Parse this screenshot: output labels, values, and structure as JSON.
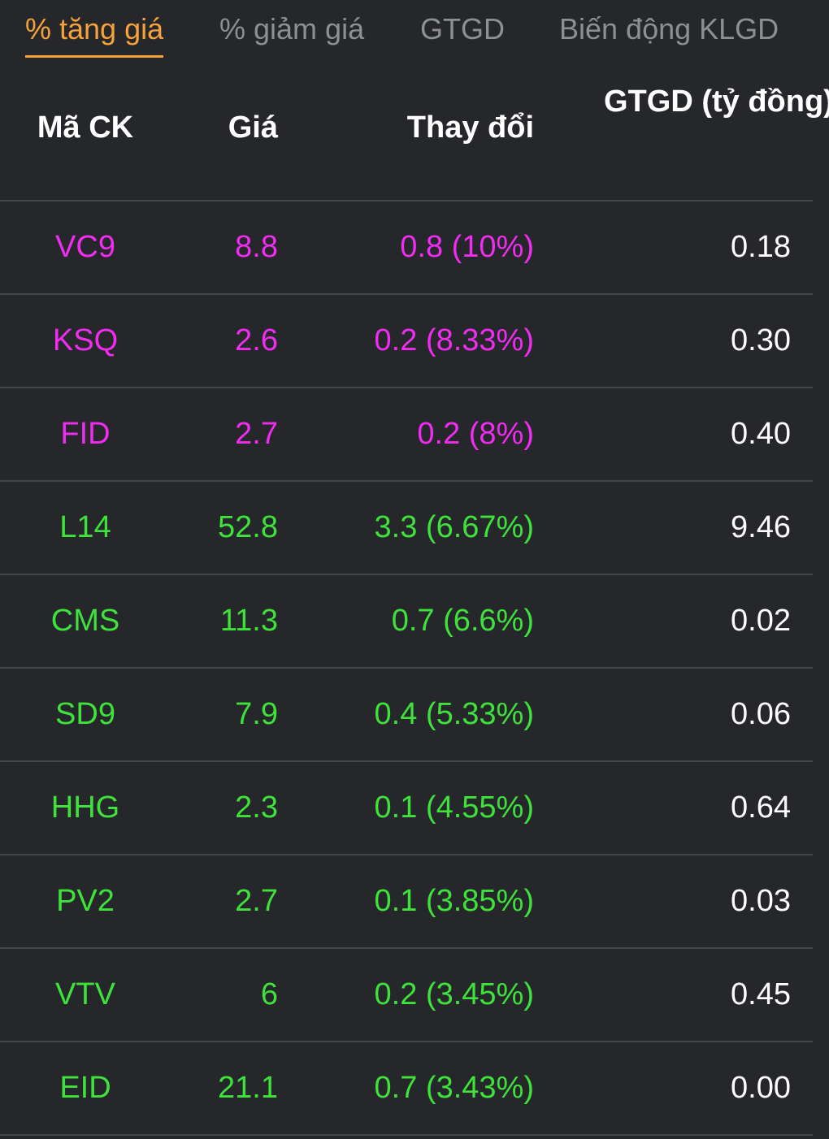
{
  "tabs": [
    {
      "label": "% tăng giá",
      "active": true
    },
    {
      "label": "% giảm giá",
      "active": false
    },
    {
      "label": "GTGD",
      "active": false
    },
    {
      "label": "Biến động KLGD",
      "active": false
    }
  ],
  "table": {
    "headers": {
      "code": "Mã CK",
      "price": "Giá",
      "change": "Thay đổi",
      "value": "GTGD (tỷ đồng)"
    },
    "rows": [
      {
        "code": "VC9",
        "price": "8.8",
        "change": "0.8 (10%)",
        "value": "0.18",
        "status": "ceil"
      },
      {
        "code": "KSQ",
        "price": "2.6",
        "change": "0.2 (8.33%)",
        "value": "0.30",
        "status": "ceil"
      },
      {
        "code": "FID",
        "price": "2.7",
        "change": "0.2 (8%)",
        "value": "0.40",
        "status": "ceil"
      },
      {
        "code": "L14",
        "price": "52.8",
        "change": "3.3 (6.67%)",
        "value": "9.46",
        "status": "up"
      },
      {
        "code": "CMS",
        "price": "11.3",
        "change": "0.7 (6.6%)",
        "value": "0.02",
        "status": "up"
      },
      {
        "code": "SD9",
        "price": "7.9",
        "change": "0.4 (5.33%)",
        "value": "0.06",
        "status": "up"
      },
      {
        "code": "HHG",
        "price": "2.3",
        "change": "0.1 (4.55%)",
        "value": "0.64",
        "status": "up"
      },
      {
        "code": "PV2",
        "price": "2.7",
        "change": "0.1 (3.85%)",
        "value": "0.03",
        "status": "up"
      },
      {
        "code": "VTV",
        "price": "6",
        "change": "0.2 (3.45%)",
        "value": "0.45",
        "status": "up"
      },
      {
        "code": "EID",
        "price": "21.1",
        "change": "0.7 (3.43%)",
        "value": "0.00",
        "status": "up"
      }
    ]
  },
  "colors": {
    "background": "#26272b",
    "active_tab": "#f5a23a",
    "inactive_tab": "#8e8f94",
    "ceiling": "#f02cf0",
    "up": "#3ee23a",
    "divider": "#45464b"
  }
}
